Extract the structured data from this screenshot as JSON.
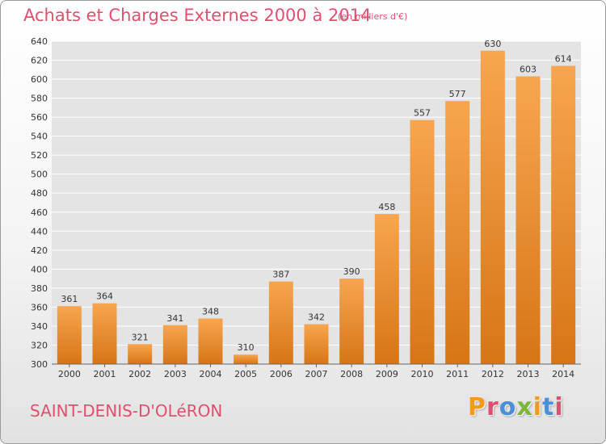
{
  "header": {
    "title": "Achats et Charges Externes 2000 à 2014",
    "subtitle": "(en milliers d'€)"
  },
  "footer": {
    "city": "SAINT-DENIS-D'OLéRON",
    "logo_text": "Proxiti",
    "logo_colors": [
      "#f39a1d",
      "#e0506e",
      "#4a8fd8",
      "#7ab83a",
      "#f39a1d",
      "#4a8fd8",
      "#e0506e"
    ]
  },
  "colors": {
    "title": "#e0506e",
    "bar_light": "#f7a64f",
    "bar_dark": "#d77516",
    "grid": "#ffffff",
    "plot_bg": "#e4e4e4"
  },
  "chart_data": {
    "type": "bar",
    "title": "Achats et Charges Externes 2000 à 2014",
    "subtitle": "(en milliers d'€)",
    "categories": [
      "2000",
      "2001",
      "2002",
      "2003",
      "2004",
      "2005",
      "2006",
      "2007",
      "2008",
      "2009",
      "2010",
      "2011",
      "2012",
      "2013",
      "2014"
    ],
    "values": [
      361,
      364,
      321,
      341,
      348,
      310,
      387,
      342,
      390,
      458,
      557,
      577,
      630,
      603,
      614
    ],
    "ylim": [
      300,
      640
    ],
    "yticks": [
      300,
      320,
      340,
      360,
      380,
      400,
      420,
      440,
      460,
      480,
      500,
      520,
      540,
      560,
      580,
      600,
      620,
      640
    ],
    "grid": true,
    "data_labels": true
  }
}
